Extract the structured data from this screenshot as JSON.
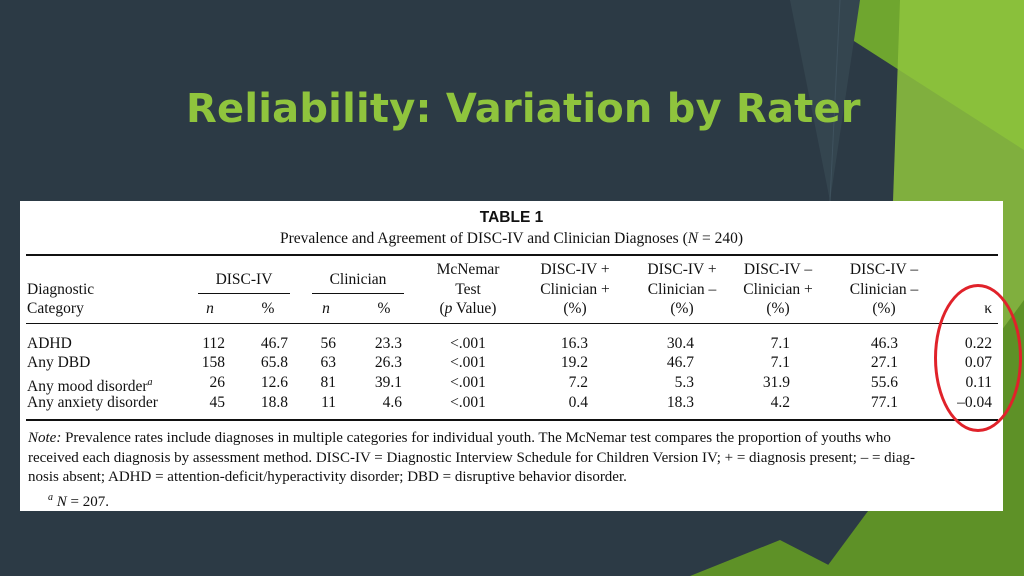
{
  "slide": {
    "title": "Reliability: Variation by Rater",
    "colors": {
      "background": "#2c3a45",
      "title": "#8fc43d",
      "accent_green": "#8fc43d",
      "highlight_ring": "#e0222a"
    }
  },
  "table": {
    "label": "TABLE 1",
    "caption_pre": "Prevalence and Agreement of DISC-IV and Clinician Diagnoses (",
    "caption_n": "N",
    "caption_post": " = 240)",
    "headers": {
      "category_line1": "Diagnostic",
      "category_line2": "Category",
      "group_disc": "DISC-IV",
      "group_clinician": "Clinician",
      "sub_n": "n",
      "sub_pct": "%",
      "mcnemar_line1": "McNemar",
      "mcnemar_line2": "Test",
      "mcnemar_p": "p",
      "mcnemar_value": " Value)",
      "pp_line1": "DISC-IV +",
      "pp_line2": "Clinician +",
      "pp_line3": "(%)",
      "pm_line1": "DISC-IV +",
      "pm_line2": "Clinician –",
      "pm_line3": "(%)",
      "mp_line1": "DISC-IV –",
      "mp_line2": "Clinician +",
      "mp_line3": "(%)",
      "mm_line1": "DISC-IV –",
      "mm_line2": "Clinician –",
      "mm_line3": "(%)",
      "kappa": "κ"
    },
    "rows": [
      {
        "category": "ADHD",
        "sup": "",
        "disc_n": "112",
        "disc_pct": "46.7",
        "clin_n": "56",
        "clin_pct": "23.3",
        "mcnemar": "<.001",
        "pp": "16.3",
        "pm": "30.4",
        "mp": "7.1",
        "mm": "46.3",
        "kappa": "0.22"
      },
      {
        "category": "Any DBD",
        "sup": "",
        "disc_n": "158",
        "disc_pct": "65.8",
        "clin_n": "63",
        "clin_pct": "26.3",
        "mcnemar": "<.001",
        "pp": "19.2",
        "pm": "46.7",
        "mp": "7.1",
        "mm": "27.1",
        "kappa": "0.07"
      },
      {
        "category": "Any mood disorder",
        "sup": "a",
        "disc_n": "26",
        "disc_pct": "12.6",
        "clin_n": "81",
        "clin_pct": "39.1",
        "mcnemar": "<.001",
        "pp": "7.2",
        "pm": "5.3",
        "mp": "31.9",
        "mm": "55.6",
        "kappa": "0.11"
      },
      {
        "category": "Any anxiety disorder",
        "sup": "",
        "disc_n": "45",
        "disc_pct": "18.8",
        "clin_n": "11",
        "clin_pct": "4.6",
        "mcnemar": "<.001",
        "pp": "0.4",
        "pm": "18.3",
        "mp": "4.2",
        "mm": "77.1",
        "kappa": "–0.04"
      }
    ],
    "note": {
      "label": "Note:",
      "line1": " Prevalence rates include diagnoses in multiple categories for individual youth. The McNemar test compares the proportion of youths who",
      "line2": "received each diagnosis by assessment method. DISC-IV = Diagnostic Interview Schedule for Children Version IV; + = diagnosis present; – = diag-",
      "line3": "nosis absent; ADHD = attention-deficit/hyperactivity disorder; DBD = disruptive behavior disorder.",
      "footnote_mark": "a",
      "footnote_n": "N",
      "footnote_text": " = 207."
    }
  }
}
